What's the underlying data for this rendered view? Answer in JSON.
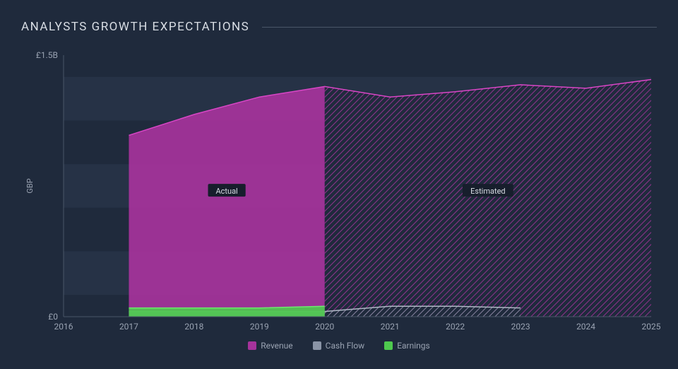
{
  "chart": {
    "type": "area",
    "title": "ANALYSTS GROWTH EXPECTATIONS",
    "background_color": "#1f2a3c",
    "grid_band_color": "#263246",
    "axis_line_color": "#4a5668",
    "text_color": "#9aa3b2",
    "ylabel": "GBP",
    "ylim": [
      0,
      1.5
    ],
    "ytick_labels": [
      "£0",
      "£1.5B"
    ],
    "ytick_positions": [
      0,
      1.5
    ],
    "grid_band_positions": [
      0.25,
      0.75,
      1.25
    ],
    "grid_band_height": 0.25,
    "x_categories": [
      "2016",
      "2017",
      "2018",
      "2019",
      "2020",
      "2021",
      "2022",
      "2023",
      "2024",
      "2025"
    ],
    "actual_cutoff_x": 4,
    "region_labels": {
      "actual": "Actual",
      "estimated": "Estimated"
    },
    "series": [
      {
        "name": "Revenue",
        "color": "#a6339c",
        "stroke": "#d946c6",
        "data": [
          null,
          1.04,
          1.16,
          1.26,
          1.32,
          1.26,
          1.29,
          1.33,
          1.31,
          1.36
        ],
        "estimated_pattern": "hatch"
      },
      {
        "name": "Cash Flow",
        "color": "#8a94a6",
        "stroke": "#b0b8c6",
        "data": [
          null,
          0.03,
          0.03,
          0.03,
          0.03,
          0.06,
          0.06,
          0.05,
          null,
          null
        ],
        "estimated_pattern": "hatch"
      },
      {
        "name": "Earnings",
        "color": "#4ec94e",
        "stroke": "#6ee86e",
        "data": [
          null,
          0.05,
          0.05,
          0.05,
          0.06,
          null,
          null,
          null,
          null,
          null
        ],
        "estimated_pattern": "hatch"
      }
    ],
    "legend": [
      "Revenue",
      "Cash Flow",
      "Earnings"
    ],
    "title_fontsize": 17,
    "label_fontsize": 11,
    "tick_fontsize": 12
  }
}
